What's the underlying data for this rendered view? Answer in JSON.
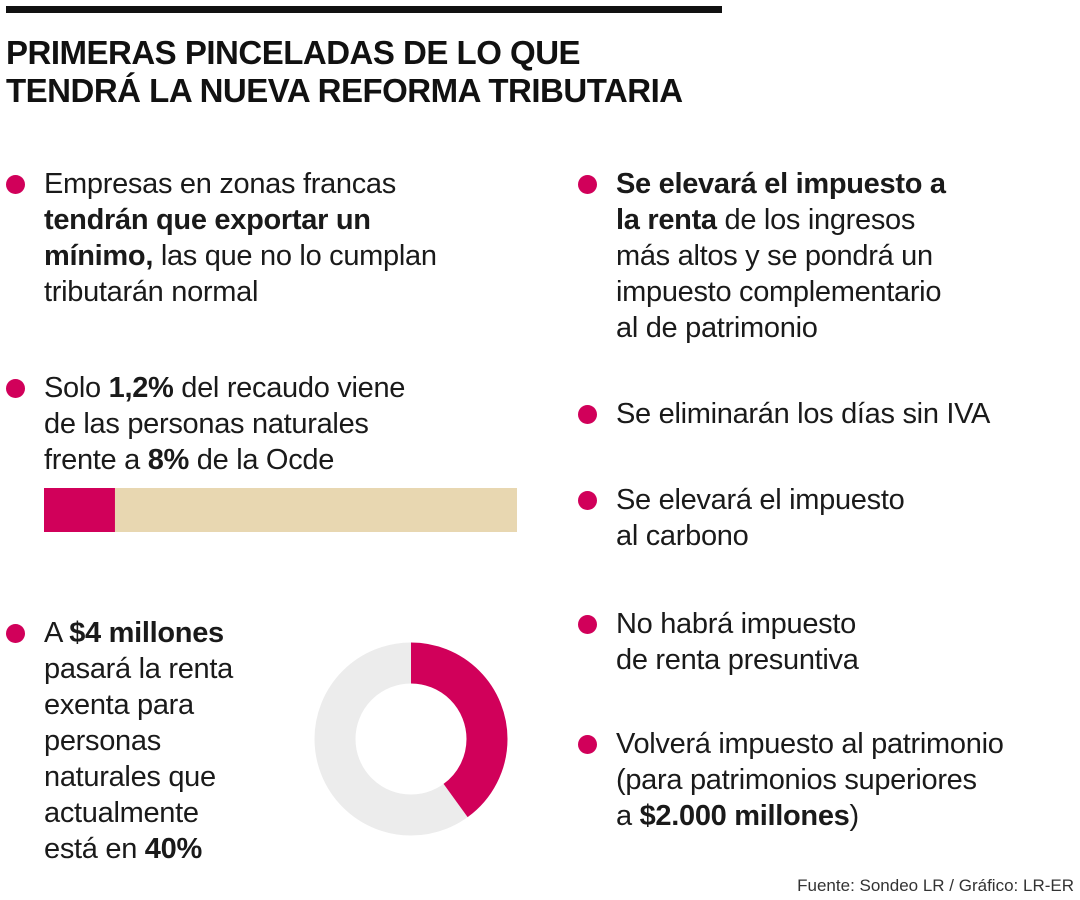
{
  "title": [
    "PRIMERAS PINCELADAS DE LO QUE",
    "TENDRÁ LA NUEVA REFORMA TRIBUTARIA"
  ],
  "colors": {
    "accent": "#d1005a",
    "bar_bg": "#e8d7b1",
    "donut_bg": "#ececec"
  },
  "items": [
    {
      "lines": [
        [
          {
            "t": "Empresas en zonas francas",
            "b": false
          }
        ],
        [
          {
            "t": "tendrán que exportar un",
            "b": true
          }
        ],
        [
          {
            "t": "mínimo,",
            "b": true
          },
          {
            "t": " las que no lo cumplan",
            "b": false
          }
        ],
        [
          {
            "t": "tributarán normal",
            "b": false
          }
        ]
      ]
    },
    {
      "lines": [
        [
          {
            "t": "Solo ",
            "b": false
          },
          {
            "t": "1,2%",
            "b": true
          },
          {
            "t": " del recaudo viene",
            "b": false
          }
        ],
        [
          {
            "t": "de las personas naturales",
            "b": false
          }
        ],
        [
          {
            "t": "frente a ",
            "b": false
          },
          {
            "t": "8%",
            "b": true
          },
          {
            "t": " de la Ocde",
            "b": false
          }
        ]
      ]
    },
    {
      "lines": [
        [
          {
            "t": "A ",
            "b": false
          },
          {
            "t": "$4 millones",
            "b": true
          }
        ],
        [
          {
            "t": "pasará la renta",
            "b": false
          }
        ],
        [
          {
            "t": "exenta para",
            "b": false
          }
        ],
        [
          {
            "t": "personas",
            "b": false
          }
        ],
        [
          {
            "t": "naturales que",
            "b": false
          }
        ],
        [
          {
            "t": "actualmente",
            "b": false
          }
        ],
        [
          {
            "t": "está en ",
            "b": false
          },
          {
            "t": "40%",
            "b": true
          }
        ]
      ]
    },
    {
      "lines": [
        [
          {
            "t": "Se elevará el impuesto a",
            "b": true
          }
        ],
        [
          {
            "t": "la renta",
            "b": true
          },
          {
            "t": " de los ingresos",
            "b": false
          }
        ],
        [
          {
            "t": "más altos y se pondrá un",
            "b": false
          }
        ],
        [
          {
            "t": "impuesto complementario",
            "b": false
          }
        ],
        [
          {
            "t": "al de patrimonio",
            "b": false
          }
        ]
      ]
    },
    {
      "lines": [
        [
          {
            "t": "Se eliminarán los días sin IVA",
            "b": false
          }
        ]
      ]
    },
    {
      "lines": [
        [
          {
            "t": "Se elevará el impuesto",
            "b": false
          }
        ],
        [
          {
            "t": "al carbono",
            "b": false
          }
        ]
      ]
    },
    {
      "lines": [
        [
          {
            "t": "No habrá impuesto",
            "b": false
          }
        ],
        [
          {
            "t": "de renta presuntiva",
            "b": false
          }
        ]
      ]
    },
    {
      "lines": [
        [
          {
            "t": "Volverá impuesto al patrimonio",
            "b": false
          }
        ],
        [
          {
            "t": "(para patrimonios superiores",
            "b": false
          }
        ],
        [
          {
            "t": "a ",
            "b": false
          },
          {
            "t": "$2.000 millones",
            "b": true
          },
          {
            "t": ")",
            "b": false
          }
        ]
      ]
    }
  ],
  "bar": {
    "value_pct": 1.2,
    "max_pct": 8
  },
  "donut": {
    "value_pct": 40
  },
  "source": "Fuente: Sondeo LR / Gráfico: LR-ER"
}
